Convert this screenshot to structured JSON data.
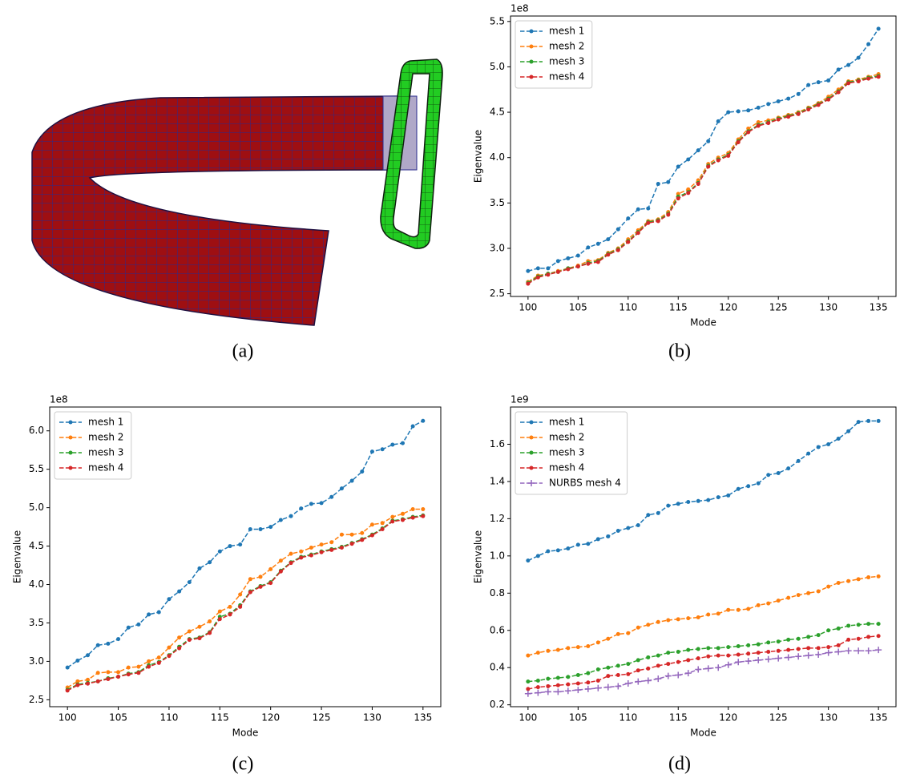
{
  "panel_a": {
    "caption": "(a)"
  },
  "chart_data": [
    {
      "type": "line",
      "caption": "(b)",
      "x_label": "Mode",
      "y_label": "Eigenvalue",
      "y_offset_label": "1e8",
      "legend": "upper left",
      "x": [
        100,
        101,
        102,
        103,
        104,
        105,
        106,
        107,
        108,
        109,
        110,
        111,
        112,
        113,
        114,
        115,
        116,
        117,
        118,
        119,
        120,
        121,
        122,
        123,
        124,
        125,
        126,
        127,
        128,
        129,
        130,
        131,
        132,
        133,
        134,
        135
      ],
      "xlim": [
        98.25,
        136.75
      ],
      "xticks": [
        100,
        105,
        110,
        115,
        120,
        125,
        130,
        135
      ],
      "ylim": [
        2.47,
        5.56
      ],
      "yticks": [
        2.5,
        {
          "value": 3,
          "label": "3.0"
        },
        3.5,
        {
          "value": 4,
          "label": "4.0"
        },
        4.5,
        {
          "value": 5,
          "label": "5.0"
        },
        5.5
      ],
      "series": [
        {
          "name": "mesh 1",
          "color": "#1f77b4",
          "marker": "o",
          "values": [
            2.75,
            2.78,
            2.78,
            2.86,
            2.89,
            2.92,
            3.01,
            3.05,
            3.1,
            3.21,
            3.33,
            3.43,
            3.44,
            3.71,
            3.73,
            3.9,
            3.98,
            4.08,
            4.18,
            4.4,
            4.5,
            4.51,
            4.52,
            4.55,
            4.59,
            4.62,
            4.65,
            4.7,
            4.8,
            4.83,
            4.85,
            4.97,
            5.02,
            5.1,
            5.25,
            5.42
          ]
        },
        {
          "name": "mesh 2",
          "color": "#ff7f0e",
          "marker": "o",
          "values": [
            2.63,
            2.7,
            2.72,
            2.75,
            2.78,
            2.81,
            2.86,
            2.87,
            2.95,
            3.0,
            3.1,
            3.2,
            3.3,
            3.32,
            3.4,
            3.6,
            3.65,
            3.75,
            3.93,
            4.0,
            4.05,
            4.2,
            4.32,
            4.39,
            4.41,
            4.44,
            4.47,
            4.5,
            4.55,
            4.6,
            4.67,
            4.75,
            4.84,
            4.86,
            4.89,
            4.92
          ]
        },
        {
          "name": "mesh 3",
          "color": "#2ca02c",
          "marker": "o",
          "values": [
            2.62,
            2.69,
            2.72,
            2.74,
            2.78,
            2.8,
            2.84,
            2.86,
            2.94,
            2.99,
            3.08,
            3.18,
            3.29,
            3.31,
            3.38,
            3.57,
            3.62,
            3.72,
            3.91,
            3.98,
            4.03,
            4.18,
            4.29,
            4.36,
            4.39,
            4.43,
            4.46,
            4.49,
            4.54,
            4.59,
            4.65,
            4.73,
            4.83,
            4.85,
            4.88,
            4.9
          ]
        },
        {
          "name": "mesh 4",
          "color": "#d62728",
          "marker": "o",
          "values": [
            2.61,
            2.68,
            2.71,
            2.74,
            2.77,
            2.8,
            2.83,
            2.85,
            2.93,
            2.98,
            3.07,
            3.17,
            3.28,
            3.3,
            3.37,
            3.55,
            3.61,
            3.71,
            3.9,
            3.97,
            4.02,
            4.17,
            4.28,
            4.35,
            4.38,
            4.42,
            4.45,
            4.48,
            4.53,
            4.58,
            4.64,
            4.72,
            4.82,
            4.84,
            4.87,
            4.89
          ]
        }
      ]
    },
    {
      "type": "line",
      "caption": "(c)",
      "x_label": "Mode",
      "y_label": "Eigenvalue",
      "y_offset_label": "1e8",
      "legend": "upper left",
      "x": [
        100,
        101,
        102,
        103,
        104,
        105,
        106,
        107,
        108,
        109,
        110,
        111,
        112,
        113,
        114,
        115,
        116,
        117,
        118,
        119,
        120,
        121,
        122,
        123,
        124,
        125,
        126,
        127,
        128,
        129,
        130,
        131,
        132,
        133,
        134,
        135
      ],
      "xlim": [
        98.25,
        136.75
      ],
      "xticks": [
        100,
        105,
        110,
        115,
        120,
        125,
        130,
        135
      ],
      "ylim": [
        2.41,
        6.31
      ],
      "yticks": [
        2.5,
        {
          "value": 3,
          "label": "3.0"
        },
        3.5,
        {
          "value": 4,
          "label": "4.0"
        },
        4.5,
        {
          "value": 5,
          "label": "5.0"
        },
        5.5,
        {
          "value": 6,
          "label": "6.0"
        }
      ],
      "series": [
        {
          "name": "mesh 1",
          "color": "#1f77b4",
          "marker": "o",
          "values": [
            2.92,
            3.01,
            3.08,
            3.21,
            3.23,
            3.29,
            3.44,
            3.48,
            3.61,
            3.64,
            3.81,
            3.91,
            4.03,
            4.21,
            4.29,
            4.43,
            4.5,
            4.52,
            4.72,
            4.72,
            4.75,
            4.84,
            4.89,
            4.99,
            5.05,
            5.06,
            5.14,
            5.25,
            5.35,
            5.47,
            5.73,
            5.76,
            5.82,
            5.84,
            6.06,
            6.13
          ]
        },
        {
          "name": "mesh 2",
          "color": "#ff7f0e",
          "marker": "o",
          "values": [
            2.66,
            2.74,
            2.76,
            2.85,
            2.86,
            2.86,
            2.92,
            2.93,
            3.0,
            3.05,
            3.18,
            3.31,
            3.39,
            3.45,
            3.52,
            3.65,
            3.71,
            3.87,
            4.07,
            4.1,
            4.2,
            4.31,
            4.4,
            4.43,
            4.48,
            4.52,
            4.55,
            4.65,
            4.65,
            4.67,
            4.78,
            4.8,
            4.88,
            4.92,
            4.98,
            4.98
          ]
        },
        {
          "name": "mesh 3",
          "color": "#2ca02c",
          "marker": "o",
          "values": [
            2.63,
            2.7,
            2.72,
            2.74,
            2.78,
            2.8,
            2.84,
            2.86,
            2.95,
            2.99,
            3.08,
            3.19,
            3.29,
            3.31,
            3.38,
            3.58,
            3.62,
            3.73,
            3.91,
            3.98,
            4.03,
            4.18,
            4.29,
            4.36,
            4.39,
            4.43,
            4.46,
            4.49,
            4.54,
            4.59,
            4.65,
            4.73,
            4.83,
            4.85,
            4.88,
            4.9
          ]
        },
        {
          "name": "mesh 4",
          "color": "#d62728",
          "marker": "o",
          "values": [
            2.62,
            2.69,
            2.71,
            2.74,
            2.77,
            2.8,
            2.83,
            2.85,
            2.93,
            2.98,
            3.07,
            3.17,
            3.28,
            3.3,
            3.37,
            3.55,
            3.61,
            3.71,
            3.9,
            3.97,
            4.02,
            4.17,
            4.28,
            4.35,
            4.38,
            4.42,
            4.45,
            4.48,
            4.53,
            4.58,
            4.64,
            4.72,
            4.82,
            4.84,
            4.87,
            4.89
          ]
        }
      ]
    },
    {
      "type": "line",
      "caption": "(d)",
      "x_label": "Mode",
      "y_label": "Eigenvalue",
      "y_offset_label": "1e9",
      "legend": "upper left",
      "x": [
        100,
        101,
        102,
        103,
        104,
        105,
        106,
        107,
        108,
        109,
        110,
        111,
        112,
        113,
        114,
        115,
        116,
        117,
        118,
        119,
        120,
        121,
        122,
        123,
        124,
        125,
        126,
        127,
        128,
        129,
        130,
        131,
        132,
        133,
        134,
        135
      ],
      "xlim": [
        98.25,
        136.75
      ],
      "xticks": [
        100,
        105,
        110,
        115,
        120,
        125,
        130,
        135
      ],
      "ylim": [
        0.19,
        1.8
      ],
      "yticks": [
        0.2,
        0.4,
        0.6,
        0.8,
        {
          "value": 1,
          "label": "1.0"
        },
        1.2,
        1.4,
        1.6
      ],
      "series": [
        {
          "name": "mesh 1",
          "color": "#1f77b4",
          "marker": "o",
          "values": [
            0.975,
            1.0,
            1.025,
            1.03,
            1.04,
            1.06,
            1.065,
            1.09,
            1.105,
            1.135,
            1.15,
            1.165,
            1.22,
            1.23,
            1.27,
            1.28,
            1.29,
            1.295,
            1.3,
            1.315,
            1.325,
            1.36,
            1.375,
            1.39,
            1.435,
            1.445,
            1.47,
            1.51,
            1.55,
            1.585,
            1.6,
            1.63,
            1.67,
            1.72,
            1.725,
            1.725
          ]
        },
        {
          "name": "mesh 2",
          "color": "#ff7f0e",
          "marker": "o",
          "values": [
            0.465,
            0.48,
            0.49,
            0.495,
            0.505,
            0.51,
            0.515,
            0.535,
            0.555,
            0.58,
            0.585,
            0.615,
            0.63,
            0.645,
            0.655,
            0.66,
            0.665,
            0.67,
            0.685,
            0.69,
            0.71,
            0.71,
            0.715,
            0.735,
            0.745,
            0.76,
            0.775,
            0.79,
            0.8,
            0.81,
            0.835,
            0.855,
            0.865,
            0.875,
            0.885,
            0.89
          ]
        },
        {
          "name": "mesh 3",
          "color": "#2ca02c",
          "marker": "o",
          "values": [
            0.325,
            0.33,
            0.34,
            0.345,
            0.35,
            0.36,
            0.37,
            0.39,
            0.4,
            0.41,
            0.42,
            0.44,
            0.455,
            0.465,
            0.48,
            0.485,
            0.495,
            0.5,
            0.505,
            0.505,
            0.51,
            0.515,
            0.52,
            0.525,
            0.535,
            0.54,
            0.55,
            0.555,
            0.565,
            0.575,
            0.6,
            0.61,
            0.625,
            0.63,
            0.635,
            0.635
          ]
        },
        {
          "name": "mesh 4",
          "color": "#d62728",
          "marker": "o",
          "values": [
            0.285,
            0.295,
            0.3,
            0.305,
            0.31,
            0.315,
            0.32,
            0.33,
            0.355,
            0.36,
            0.365,
            0.385,
            0.395,
            0.41,
            0.42,
            0.43,
            0.44,
            0.45,
            0.46,
            0.465,
            0.465,
            0.47,
            0.475,
            0.48,
            0.485,
            0.49,
            0.495,
            0.5,
            0.505,
            0.505,
            0.51,
            0.52,
            0.55,
            0.555,
            0.565,
            0.57
          ]
        },
        {
          "name": "NURBS mesh 4",
          "color": "#9467bd",
          "marker": "+",
          "values": [
            0.26,
            0.265,
            0.27,
            0.27,
            0.275,
            0.28,
            0.285,
            0.29,
            0.295,
            0.3,
            0.315,
            0.325,
            0.33,
            0.34,
            0.355,
            0.36,
            0.37,
            0.39,
            0.395,
            0.4,
            0.415,
            0.43,
            0.435,
            0.44,
            0.445,
            0.45,
            0.455,
            0.46,
            0.465,
            0.47,
            0.48,
            0.485,
            0.49,
            0.49,
            0.49,
            0.495
          ]
        }
      ]
    }
  ]
}
